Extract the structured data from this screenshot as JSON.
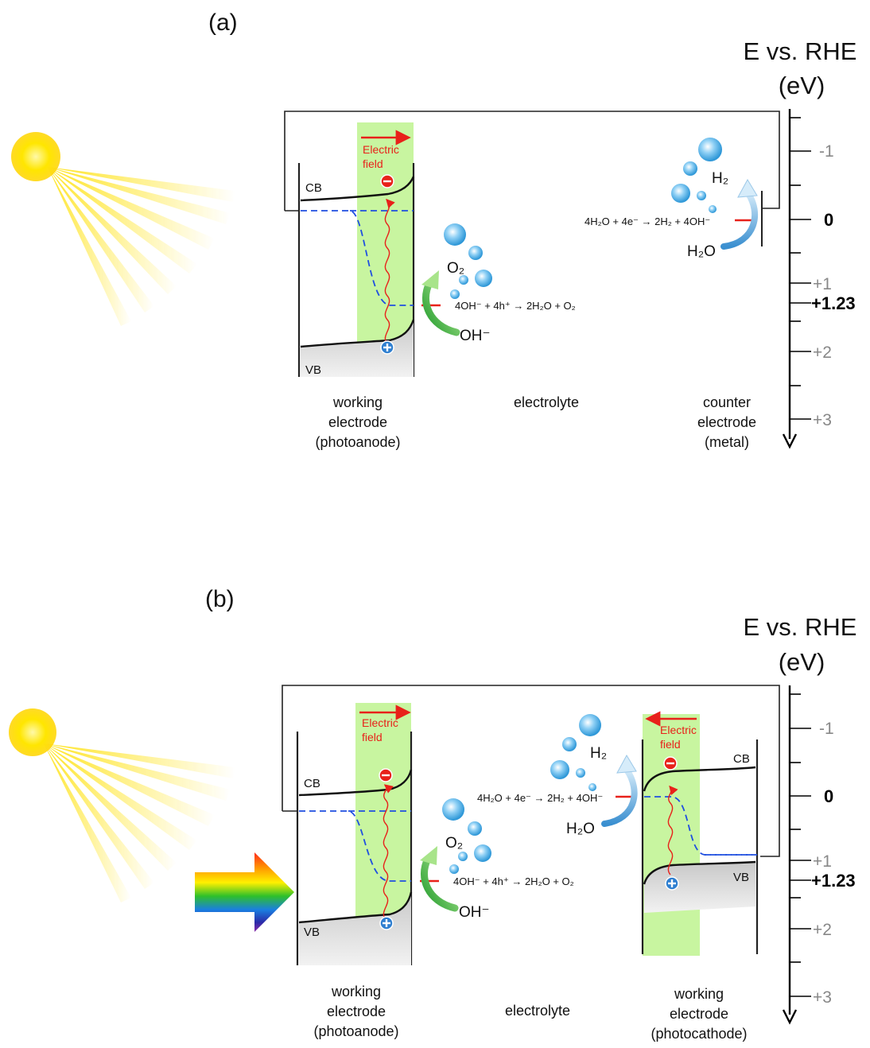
{
  "panel_a": {
    "label": "(a)",
    "axis": {
      "title_line1": "E vs. RHE",
      "title_line2": "(eV)",
      "ticks": [
        "-1",
        "0",
        "+1",
        "+1.23",
        "+2",
        "+3"
      ]
    },
    "cb": "CB",
    "vb": "VB",
    "electric_field": [
      "Electric",
      "field"
    ],
    "oxidation_reaction": "4OH⁻ + 4h⁺ → 2H₂O + O₂",
    "reduction_reaction": "4H₂O + 4e⁻ → 2H₂ + 4OH⁻",
    "o2": "O₂",
    "oh": "OH⁻",
    "h2": "H₂",
    "h2o": "H₂O",
    "captions": {
      "left": [
        "working",
        "electrode",
        "(photoanode)"
      ],
      "middle": "electrolyte",
      "right": [
        "counter",
        "electrode",
        "(metal)"
      ]
    }
  },
  "panel_b": {
    "label": "(b)",
    "axis": {
      "title_line1": "E vs. RHE",
      "title_line2": "(eV)",
      "ticks": [
        "-1",
        "0",
        "+1",
        "+1.23",
        "+2",
        "+3"
      ]
    },
    "cb_left": "CB",
    "vb_left": "VB",
    "cb_right": "CB",
    "vb_right": "VB",
    "electric_field_left": [
      "Electric",
      "field"
    ],
    "electric_field_right": [
      "Electric",
      "field"
    ],
    "oxidation_reaction": "4OH⁻ + 4h⁺ → 2H₂O + O₂",
    "reduction_reaction": "4H₂O + 4e⁻ → 2H₂ + 4OH⁻",
    "o2": "O₂",
    "oh": "OH⁻",
    "h2": "H₂",
    "h2o": "H₂O",
    "captions": {
      "left": [
        "working",
        "electrode",
        "(photoanode)"
      ],
      "middle": "electrolyte",
      "right": [
        "working",
        "electrode",
        "(photocathode)"
      ]
    }
  },
  "colors": {
    "field_band": "#c8f5a0",
    "electric_field": "#e8211a",
    "fermi_dashed": "#1f4fe0",
    "sun": "#ffe600",
    "bubble": "#3aa6e0",
    "green_arrow": "#3cb43c"
  }
}
